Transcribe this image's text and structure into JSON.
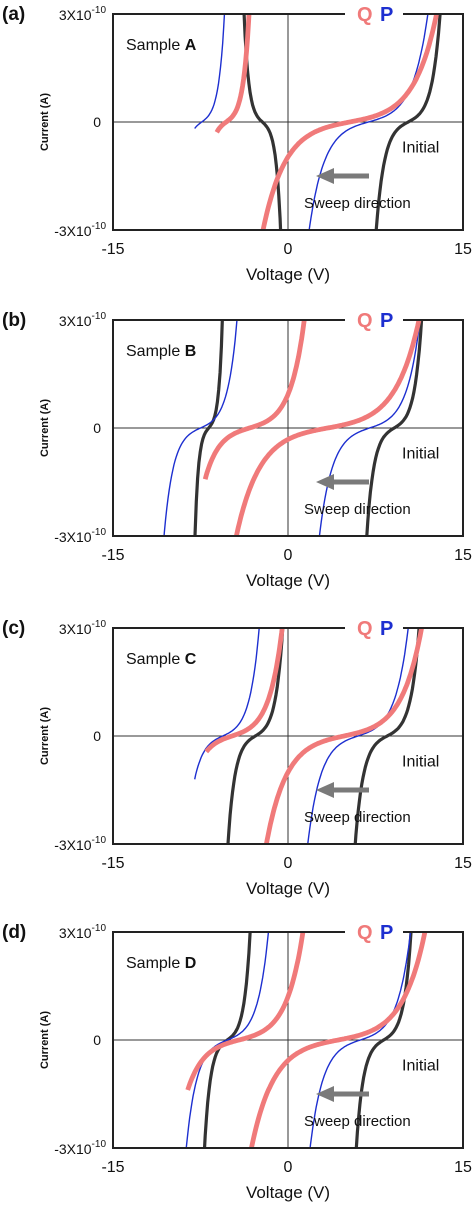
{
  "chart_data": [
    {
      "type": "line",
      "panel_label": "(a)",
      "sample_prefix": "Sample ",
      "sample_letter": "A",
      "xlabel": "Voltage (V)",
      "ylabel": "Current (A)",
      "x_tick_labels": [
        "-15",
        "0",
        "15"
      ],
      "y_tick_labels": [
        "3X10-10",
        "0",
        "-3X10-10"
      ],
      "xlim": [
        -15,
        15
      ],
      "ylim": [
        -3e-10,
        3e-10
      ],
      "legend_q": "Q",
      "legend_p": "P",
      "initial_label": "Initial",
      "sweep_label": "Sweep direction",
      "series": [
        {
          "name": "Initial",
          "color": "#333333",
          "width": 3.2,
          "zf": -2.2,
          "zr": 10.3,
          "v0": -11.8,
          "vF": -0.4,
          "vR": 0.7
        },
        {
          "name": "P",
          "color": "#1d2fd0",
          "width": 1.4,
          "zf": -7.4,
          "zr": 6.9,
          "v0": -8.0,
          "vF": 0.5,
          "vR": 1.3
        },
        {
          "name": "Q",
          "color": "#f07a7a",
          "width": 4.8,
          "zf": -5.3,
          "zr": 5.3,
          "v0": -6.1,
          "vF": 0.5,
          "vR": 1.9
        }
      ]
    },
    {
      "type": "line",
      "panel_label": "(b)",
      "sample_prefix": "Sample ",
      "sample_letter": "B",
      "xlabel": "Voltage (V)",
      "ylabel": "Current (A)",
      "x_tick_labels": [
        "-15",
        "0",
        "15"
      ],
      "y_tick_labels": [
        "3X10-10",
        "0",
        "-3X10-10"
      ],
      "xlim": [
        -15,
        15
      ],
      "ylim": [
        -3e-10,
        3e-10
      ],
      "legend_q": "Q",
      "legend_p": "P",
      "initial_label": "Initial",
      "sweep_label": "Sweep direction",
      "series": [
        {
          "name": "Initial",
          "color": "#333333",
          "width": 3.2,
          "zf": -6.8,
          "zr": 9.1,
          "v0": -13.4,
          "vF": 0.3,
          "vR": 0.6
        },
        {
          "name": "P",
          "color": "#1d2fd0",
          "width": 1.4,
          "zf": -7.5,
          "zr": 7.0,
          "v0": -10.7,
          "vF": 0.8,
          "vR": 1.1
        },
        {
          "name": "Q",
          "color": "#f07a7a",
          "width": 4.8,
          "zf": -3.3,
          "zr": 3.4,
          "v0": -7.1,
          "vF": 1.2,
          "vR": 2.0
        }
      ]
    },
    {
      "type": "line",
      "panel_label": "(c)",
      "sample_prefix": "Sample ",
      "sample_letter": "C",
      "xlabel": "Voltage (V)",
      "ylabel": "Current (A)",
      "x_tick_labels": [
        "-15",
        "0",
        "15"
      ],
      "y_tick_labels": [
        "3X10-10",
        "0",
        "-3X10-10"
      ],
      "xlim": [
        -15,
        15
      ],
      "ylim": [
        -3e-10,
        3e-10
      ],
      "legend_q": "Q",
      "legend_p": "P",
      "initial_label": "Initial",
      "sweep_label": "Sweep direction",
      "series": [
        {
          "name": "Initial",
          "color": "#333333",
          "width": 3.2,
          "zf": -2.8,
          "zr": 8.5,
          "v0": -10.2,
          "vF": 0.6,
          "vR": 0.7
        },
        {
          "name": "P",
          "color": "#1d2fd0",
          "width": 1.4,
          "zf": -5.6,
          "zr": 6.0,
          "v0": -8.0,
          "vF": 0.8,
          "vR": 1.1
        },
        {
          "name": "Q",
          "color": "#f07a7a",
          "width": 4.8,
          "zf": -4.8,
          "zr": 4.8,
          "v0": -7.0,
          "vF": 1.1,
          "vR": 1.7
        }
      ]
    },
    {
      "type": "line",
      "panel_label": "(d)",
      "sample_prefix": "Sample ",
      "sample_letter": "D",
      "xlabel": "Voltage (V)",
      "ylabel": "Current (A)",
      "x_tick_labels": [
        "-15",
        "0",
        "15"
      ],
      "y_tick_labels": [
        "3X10-10",
        "0",
        "-3X10-10"
      ],
      "xlim": [
        -15,
        15
      ],
      "ylim": [
        -3e-10,
        3e-10
      ],
      "legend_q": "Q",
      "legend_p": "P",
      "initial_label": "Initial",
      "sweep_label": "Sweep direction",
      "series": [
        {
          "name": "Initial",
          "color": "#333333",
          "width": 3.2,
          "zf": -5.2,
          "zr": 8.2,
          "v0": -11.8,
          "vF": 0.5,
          "vR": 0.6
        },
        {
          "name": "P",
          "color": "#1d2fd0",
          "width": 1.4,
          "zf": -5.2,
          "zr": 6.2,
          "v0": -9.4,
          "vF": 0.9,
          "vR": 1.1
        },
        {
          "name": "Q",
          "color": "#f07a7a",
          "width": 4.8,
          "zf": -4.2,
          "zr": 4.3,
          "v0": -8.6,
          "vF": 1.4,
          "vR": 1.9
        }
      ]
    }
  ]
}
